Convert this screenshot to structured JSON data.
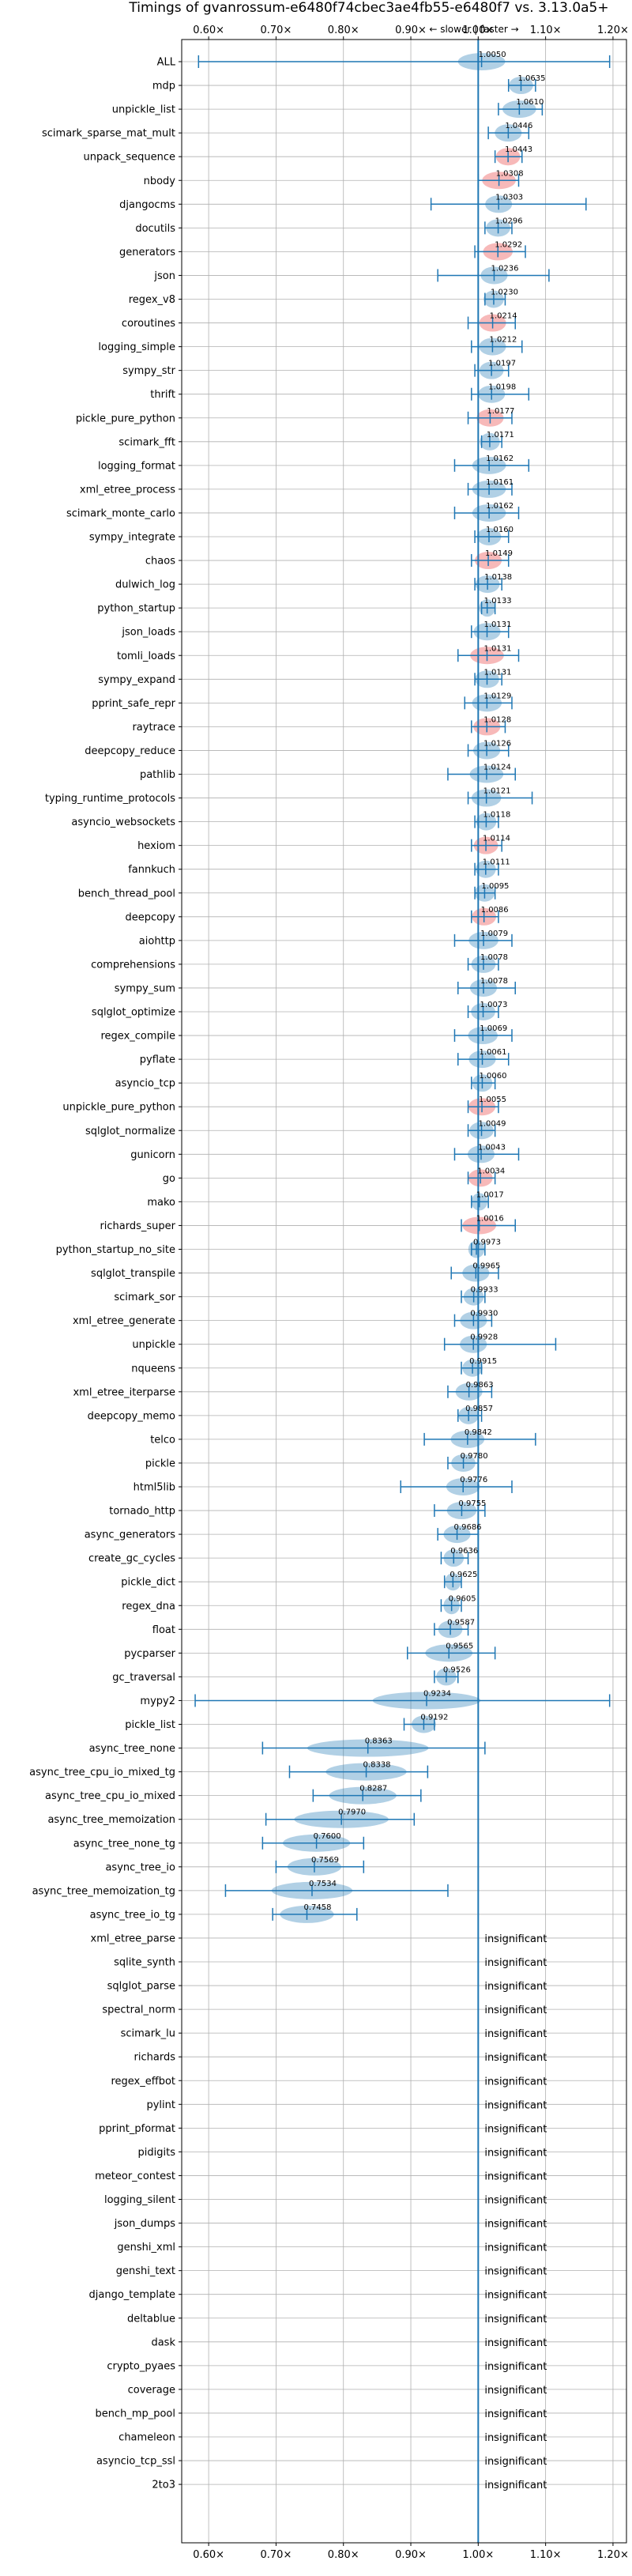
{
  "chart_data": {
    "type": "violin",
    "title": "Timings of gvanrossum-e6480f74cbec3ae4fb55-e6480f7 vs. 3.13.0a5+",
    "direction_label": "← slower | faster →",
    "xlim": [
      0.56,
      1.22
    ],
    "x_ticks": [
      0.6,
      0.7,
      0.8,
      0.9,
      1.0,
      1.1,
      1.2
    ],
    "x_tick_labels": [
      "0.60×",
      "0.70×",
      "0.80×",
      "0.90×",
      "1.00×",
      "1.10×",
      "1.20×"
    ],
    "reference_line": 1.0,
    "grid": true,
    "colors": {
      "default": "#1f77b4",
      "highlight": "#f08080",
      "line": "#1f77b4"
    },
    "insignificant_text": "insignificant",
    "benchmarks": [
      {
        "name": "ALL",
        "value": 1.005,
        "label": "1.0050",
        "min": 0.585,
        "max": 1.195,
        "spread": 0.035,
        "highlight": false
      },
      {
        "name": "mdp",
        "value": 1.0635,
        "label": "1.0635",
        "min": 1.045,
        "max": 1.085,
        "spread": 0.018,
        "highlight": false
      },
      {
        "name": "unpickle_list",
        "value": 1.061,
        "label": "1.0610",
        "min": 1.03,
        "max": 1.095,
        "spread": 0.025,
        "highlight": false
      },
      {
        "name": "scimark_sparse_mat_mult",
        "value": 1.0446,
        "label": "1.0446",
        "min": 1.015,
        "max": 1.075,
        "spread": 0.02,
        "highlight": false
      },
      {
        "name": "unpack_sequence",
        "value": 1.0443,
        "label": "1.0443",
        "min": 1.025,
        "max": 1.065,
        "spread": 0.018,
        "highlight": true
      },
      {
        "name": "nbody",
        "value": 1.0308,
        "label": "1.0308",
        "min": 1.0,
        "max": 1.06,
        "spread": 0.025,
        "highlight": true
      },
      {
        "name": "djangocms",
        "value": 1.0303,
        "label": "1.0303",
        "min": 0.93,
        "max": 1.16,
        "spread": 0.02,
        "highlight": false
      },
      {
        "name": "docutils",
        "value": 1.0296,
        "label": "1.0296",
        "min": 1.01,
        "max": 1.05,
        "spread": 0.018,
        "highlight": false
      },
      {
        "name": "generators",
        "value": 1.0292,
        "label": "1.0292",
        "min": 0.995,
        "max": 1.07,
        "spread": 0.022,
        "highlight": true
      },
      {
        "name": "json",
        "value": 1.0236,
        "label": "1.0236",
        "min": 0.94,
        "max": 1.105,
        "spread": 0.02,
        "highlight": false
      },
      {
        "name": "regex_v8",
        "value": 1.023,
        "label": "1.0230",
        "min": 1.01,
        "max": 1.04,
        "spread": 0.015,
        "highlight": false
      },
      {
        "name": "coroutines",
        "value": 1.0214,
        "label": "1.0214",
        "min": 0.985,
        "max": 1.055,
        "spread": 0.02,
        "highlight": true
      },
      {
        "name": "logging_simple",
        "value": 1.0212,
        "label": "1.0212",
        "min": 0.99,
        "max": 1.065,
        "spread": 0.02,
        "highlight": false
      },
      {
        "name": "sympy_str",
        "value": 1.0197,
        "label": "1.0197",
        "min": 0.995,
        "max": 1.045,
        "spread": 0.018,
        "highlight": false
      },
      {
        "name": "thrift",
        "value": 1.0198,
        "label": "1.0198",
        "min": 0.99,
        "max": 1.075,
        "spread": 0.02,
        "highlight": false
      },
      {
        "name": "pickle_pure_python",
        "value": 1.0177,
        "label": "1.0177",
        "min": 0.985,
        "max": 1.05,
        "spread": 0.02,
        "highlight": true
      },
      {
        "name": "scimark_fft",
        "value": 1.0171,
        "label": "1.0171",
        "min": 1.005,
        "max": 1.035,
        "spread": 0.015,
        "highlight": false
      },
      {
        "name": "logging_format",
        "value": 1.0162,
        "label": "1.0162",
        "min": 0.965,
        "max": 1.075,
        "spread": 0.025,
        "highlight": false
      },
      {
        "name": "xml_etree_process",
        "value": 1.0161,
        "label": "1.0161",
        "min": 0.985,
        "max": 1.05,
        "spread": 0.025,
        "highlight": false
      },
      {
        "name": "scimark_monte_carlo",
        "value": 1.0162,
        "label": "1.0162",
        "min": 0.965,
        "max": 1.06,
        "spread": 0.025,
        "highlight": false
      },
      {
        "name": "sympy_integrate",
        "value": 1.016,
        "label": "1.0160",
        "min": 0.995,
        "max": 1.045,
        "spread": 0.018,
        "highlight": false
      },
      {
        "name": "chaos",
        "value": 1.0149,
        "label": "1.0149",
        "min": 0.99,
        "max": 1.045,
        "spread": 0.02,
        "highlight": true
      },
      {
        "name": "dulwich_log",
        "value": 1.0138,
        "label": "1.0138",
        "min": 0.995,
        "max": 1.035,
        "spread": 0.018,
        "highlight": false
      },
      {
        "name": "python_startup",
        "value": 1.0133,
        "label": "1.0133",
        "min": 1.005,
        "max": 1.025,
        "spread": 0.012,
        "highlight": false
      },
      {
        "name": "json_loads",
        "value": 1.0131,
        "label": "1.0131",
        "min": 0.99,
        "max": 1.045,
        "spread": 0.02,
        "highlight": false
      },
      {
        "name": "tomli_loads",
        "value": 1.0131,
        "label": "1.0131",
        "min": 0.97,
        "max": 1.06,
        "spread": 0.025,
        "highlight": true
      },
      {
        "name": "sympy_expand",
        "value": 1.0131,
        "label": "1.0131",
        "min": 0.995,
        "max": 1.035,
        "spread": 0.018,
        "highlight": false
      },
      {
        "name": "pprint_safe_repr",
        "value": 1.0129,
        "label": "1.0129",
        "min": 0.98,
        "max": 1.05,
        "spread": 0.022,
        "highlight": false
      },
      {
        "name": "raytrace",
        "value": 1.0128,
        "label": "1.0128",
        "min": 0.99,
        "max": 1.04,
        "spread": 0.02,
        "highlight": true
      },
      {
        "name": "deepcopy_reduce",
        "value": 1.0126,
        "label": "1.0126",
        "min": 0.985,
        "max": 1.045,
        "spread": 0.02,
        "highlight": false
      },
      {
        "name": "pathlib",
        "value": 1.0124,
        "label": "1.0124",
        "min": 0.955,
        "max": 1.055,
        "spread": 0.025,
        "highlight": false
      },
      {
        "name": "typing_runtime_protocols",
        "value": 1.0121,
        "label": "1.0121",
        "min": 0.985,
        "max": 1.08,
        "spread": 0.022,
        "highlight": false
      },
      {
        "name": "asyncio_websockets",
        "value": 1.0118,
        "label": "1.0118",
        "min": 0.995,
        "max": 1.03,
        "spread": 0.015,
        "highlight": false
      },
      {
        "name": "hexiom",
        "value": 1.0114,
        "label": "1.0114",
        "min": 0.99,
        "max": 1.035,
        "spread": 0.018,
        "highlight": true
      },
      {
        "name": "fannkuch",
        "value": 1.0111,
        "label": "1.0111",
        "min": 0.995,
        "max": 1.03,
        "spread": 0.015,
        "highlight": false
      },
      {
        "name": "bench_thread_pool",
        "value": 1.0095,
        "label": "1.0095",
        "min": 0.995,
        "max": 1.025,
        "spread": 0.015,
        "highlight": false
      },
      {
        "name": "deepcopy",
        "value": 1.0086,
        "label": "1.0086",
        "min": 0.99,
        "max": 1.03,
        "spread": 0.018,
        "highlight": true
      },
      {
        "name": "aiohttp",
        "value": 1.0079,
        "label": "1.0079",
        "min": 0.965,
        "max": 1.05,
        "spread": 0.022,
        "highlight": false
      },
      {
        "name": "comprehensions",
        "value": 1.0078,
        "label": "1.0078",
        "min": 0.985,
        "max": 1.03,
        "spread": 0.018,
        "highlight": false
      },
      {
        "name": "sympy_sum",
        "value": 1.0078,
        "label": "1.0078",
        "min": 0.97,
        "max": 1.055,
        "spread": 0.02,
        "highlight": false
      },
      {
        "name": "sqlglot_optimize",
        "value": 1.0073,
        "label": "1.0073",
        "min": 0.985,
        "max": 1.03,
        "spread": 0.018,
        "highlight": false
      },
      {
        "name": "regex_compile",
        "value": 1.0069,
        "label": "1.0069",
        "min": 0.965,
        "max": 1.05,
        "spread": 0.022,
        "highlight": false
      },
      {
        "name": "pyflate",
        "value": 1.0061,
        "label": "1.0061",
        "min": 0.97,
        "max": 1.045,
        "spread": 0.02,
        "highlight": false
      },
      {
        "name": "asyncio_tcp",
        "value": 1.006,
        "label": "1.0060",
        "min": 0.99,
        "max": 1.025,
        "spread": 0.015,
        "highlight": false
      },
      {
        "name": "unpickle_pure_python",
        "value": 1.0055,
        "label": "1.0055",
        "min": 0.985,
        "max": 1.03,
        "spread": 0.02,
        "highlight": true
      },
      {
        "name": "sqlglot_normalize",
        "value": 1.0049,
        "label": "1.0049",
        "min": 0.985,
        "max": 1.025,
        "spread": 0.018,
        "highlight": false
      },
      {
        "name": "gunicorn",
        "value": 1.0043,
        "label": "1.0043",
        "min": 0.965,
        "max": 1.06,
        "spread": 0.02,
        "highlight": false
      },
      {
        "name": "go",
        "value": 1.0034,
        "label": "1.0034",
        "min": 0.985,
        "max": 1.025,
        "spread": 0.018,
        "highlight": true
      },
      {
        "name": "mako",
        "value": 1.0017,
        "label": "1.0017",
        "min": 0.99,
        "max": 1.015,
        "spread": 0.012,
        "highlight": false
      },
      {
        "name": "richards_super",
        "value": 1.0016,
        "label": "1.0016",
        "min": 0.975,
        "max": 1.055,
        "spread": 0.025,
        "highlight": true
      },
      {
        "name": "python_startup_no_site",
        "value": 0.9973,
        "label": "0.9973",
        "min": 0.99,
        "max": 1.01,
        "spread": 0.012,
        "highlight": false
      },
      {
        "name": "sqlglot_transpile",
        "value": 0.9965,
        "label": "0.9965",
        "min": 0.96,
        "max": 1.03,
        "spread": 0.02,
        "highlight": false
      },
      {
        "name": "scimark_sor",
        "value": 0.9933,
        "label": "0.9933",
        "min": 0.975,
        "max": 1.01,
        "spread": 0.015,
        "highlight": false
      },
      {
        "name": "xml_etree_generate",
        "value": 0.993,
        "label": "0.9930",
        "min": 0.965,
        "max": 1.02,
        "spread": 0.02,
        "highlight": false
      },
      {
        "name": "unpickle",
        "value": 0.9928,
        "label": "0.9928",
        "min": 0.95,
        "max": 1.115,
        "spread": 0.02,
        "highlight": false
      },
      {
        "name": "nqueens",
        "value": 0.9915,
        "label": "0.9915",
        "min": 0.975,
        "max": 1.005,
        "spread": 0.015,
        "highlight": false
      },
      {
        "name": "xml_etree_iterparse",
        "value": 0.9863,
        "label": "0.9863",
        "min": 0.955,
        "max": 1.02,
        "spread": 0.02,
        "highlight": false
      },
      {
        "name": "deepcopy_memo",
        "value": 0.9857,
        "label": "0.9857",
        "min": 0.97,
        "max": 1.005,
        "spread": 0.015,
        "highlight": false
      },
      {
        "name": "telco",
        "value": 0.9842,
        "label": "0.9842",
        "min": 0.92,
        "max": 1.085,
        "spread": 0.025,
        "highlight": false
      },
      {
        "name": "pickle",
        "value": 0.978,
        "label": "0.9780",
        "min": 0.955,
        "max": 1.0,
        "spread": 0.018,
        "highlight": false
      },
      {
        "name": "html5lib",
        "value": 0.9776,
        "label": "0.9776",
        "min": 0.885,
        "max": 1.05,
        "spread": 0.025,
        "highlight": false
      },
      {
        "name": "tornado_http",
        "value": 0.9755,
        "label": "0.9755",
        "min": 0.935,
        "max": 1.01,
        "spread": 0.022,
        "highlight": false
      },
      {
        "name": "async_generators",
        "value": 0.9686,
        "label": "0.9686",
        "min": 0.94,
        "max": 1.0,
        "spread": 0.02,
        "highlight": false
      },
      {
        "name": "create_gc_cycles",
        "value": 0.9636,
        "label": "0.9636",
        "min": 0.945,
        "max": 0.985,
        "spread": 0.015,
        "highlight": false
      },
      {
        "name": "pickle_dict",
        "value": 0.9625,
        "label": "0.9625",
        "min": 0.95,
        "max": 0.975,
        "spread": 0.012,
        "highlight": false
      },
      {
        "name": "regex_dna",
        "value": 0.9605,
        "label": "0.9605",
        "min": 0.945,
        "max": 0.975,
        "spread": 0.012,
        "highlight": false
      },
      {
        "name": "float",
        "value": 0.9587,
        "label": "0.9587",
        "min": 0.935,
        "max": 0.985,
        "spread": 0.018,
        "highlight": false
      },
      {
        "name": "pycparser",
        "value": 0.9565,
        "label": "0.9565",
        "min": 0.895,
        "max": 1.025,
        "spread": 0.035,
        "highlight": false
      },
      {
        "name": "gc_traversal",
        "value": 0.9526,
        "label": "0.9526",
        "min": 0.935,
        "max": 0.97,
        "spread": 0.015,
        "highlight": false
      },
      {
        "name": "mypy2",
        "value": 0.9234,
        "label": "0.9234",
        "min": 0.58,
        "max": 1.195,
        "spread": 0.08,
        "highlight": false
      },
      {
        "name": "pickle_list",
        "value": 0.9192,
        "label": "0.9192",
        "min": 0.89,
        "max": 0.935,
        "spread": 0.018,
        "highlight": false
      },
      {
        "name": "async_tree_none",
        "value": 0.8363,
        "label": "0.8363",
        "min": 0.68,
        "max": 1.01,
        "spread": 0.09,
        "highlight": false
      },
      {
        "name": "async_tree_cpu_io_mixed_tg",
        "value": 0.8338,
        "label": "0.8338",
        "min": 0.72,
        "max": 0.925,
        "spread": 0.06,
        "highlight": false
      },
      {
        "name": "async_tree_cpu_io_mixed",
        "value": 0.8287,
        "label": "0.8287",
        "min": 0.755,
        "max": 0.915,
        "spread": 0.05,
        "highlight": false
      },
      {
        "name": "async_tree_memoization",
        "value": 0.797,
        "label": "0.7970",
        "min": 0.685,
        "max": 0.905,
        "spread": 0.07,
        "highlight": false
      },
      {
        "name": "async_tree_none_tg",
        "value": 0.76,
        "label": "0.7600",
        "min": 0.68,
        "max": 0.83,
        "spread": 0.05,
        "highlight": false
      },
      {
        "name": "async_tree_io",
        "value": 0.7569,
        "label": "0.7569",
        "min": 0.7,
        "max": 0.83,
        "spread": 0.04,
        "highlight": false
      },
      {
        "name": "async_tree_memoization_tg",
        "value": 0.7534,
        "label": "0.7534",
        "min": 0.625,
        "max": 0.955,
        "spread": 0.06,
        "highlight": false
      },
      {
        "name": "async_tree_io_tg",
        "value": 0.7458,
        "label": "0.7458",
        "min": 0.695,
        "max": 0.82,
        "spread": 0.04,
        "highlight": false
      },
      {
        "name": "xml_etree_parse",
        "insignificant": true
      },
      {
        "name": "sqlite_synth",
        "insignificant": true
      },
      {
        "name": "sqlglot_parse",
        "insignificant": true
      },
      {
        "name": "spectral_norm",
        "insignificant": true
      },
      {
        "name": "scimark_lu",
        "insignificant": true
      },
      {
        "name": "richards",
        "insignificant": true
      },
      {
        "name": "regex_effbot",
        "insignificant": true
      },
      {
        "name": "pylint",
        "insignificant": true
      },
      {
        "name": "pprint_pformat",
        "insignificant": true
      },
      {
        "name": "pidigits",
        "insignificant": true
      },
      {
        "name": "meteor_contest",
        "insignificant": true
      },
      {
        "name": "logging_silent",
        "insignificant": true
      },
      {
        "name": "json_dumps",
        "insignificant": true
      },
      {
        "name": "genshi_xml",
        "insignificant": true
      },
      {
        "name": "genshi_text",
        "insignificant": true
      },
      {
        "name": "django_template",
        "insignificant": true
      },
      {
        "name": "deltablue",
        "insignificant": true
      },
      {
        "name": "dask",
        "insignificant": true
      },
      {
        "name": "crypto_pyaes",
        "insignificant": true
      },
      {
        "name": "coverage",
        "insignificant": true
      },
      {
        "name": "bench_mp_pool",
        "insignificant": true
      },
      {
        "name": "chameleon",
        "insignificant": true
      },
      {
        "name": "asyncio_tcp_ssl",
        "insignificant": true
      },
      {
        "name": "2to3",
        "insignificant": true
      }
    ]
  }
}
